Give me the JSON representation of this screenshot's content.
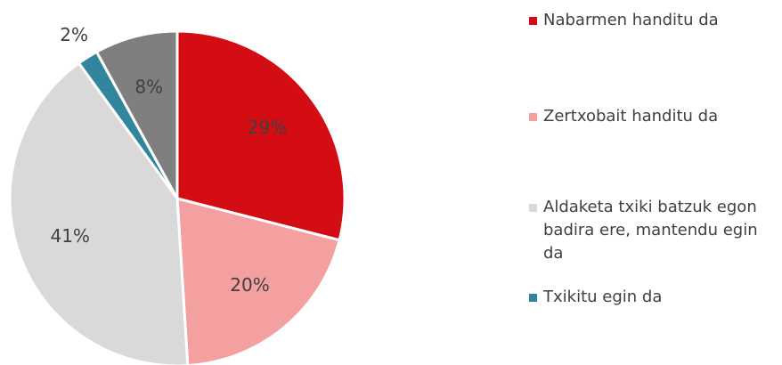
{
  "chart_data": {
    "type": "pie",
    "categories": [
      "Nabarmen handitu da",
      "Zertxobait handitu da",
      "Aldaketa txiki batzuk egon badira ere, mantendu egin da",
      "Txikitu egin da",
      null
    ],
    "values": [
      29,
      20,
      41,
      2,
      8
    ],
    "value_labels": [
      "29%",
      "20%",
      "41%",
      "2%",
      "8%"
    ],
    "colors": [
      "#d40c14",
      "#f4a0a0",
      "#d9d9d9",
      "#31859c",
      "#7f7f7f"
    ]
  }
}
